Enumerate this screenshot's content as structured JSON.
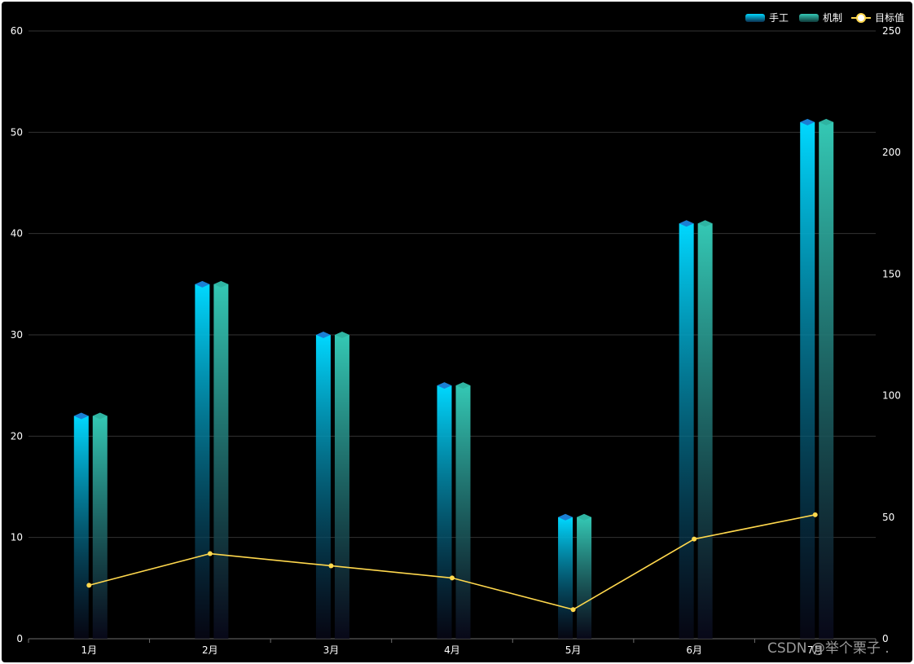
{
  "chart_data": {
    "type": "bar",
    "categories": [
      "1月",
      "2月",
      "3月",
      "4月",
      "5月",
      "6月",
      "7月"
    ],
    "series": [
      {
        "name": "手工",
        "type": "bar",
        "axis": "left",
        "values": [
          22,
          35,
          30,
          25,
          12,
          41,
          51
        ]
      },
      {
        "name": "机制",
        "type": "bar",
        "axis": "left",
        "values": [
          22,
          35,
          30,
          25,
          12,
          41,
          51
        ]
      },
      {
        "name": "目标值",
        "type": "line",
        "axis": "right",
        "values": [
          22,
          35,
          30,
          25,
          12,
          41,
          51
        ]
      }
    ],
    "y_left": {
      "min": 0,
      "max": 60,
      "ticks": [
        "0",
        "10",
        "20",
        "30",
        "40",
        "50",
        "60"
      ]
    },
    "y_right": {
      "min": 0,
      "max": 250,
      "ticks": [
        "0",
        "50",
        "100",
        "150",
        "200",
        "250"
      ]
    },
    "grid": true,
    "legend_position": "top-right",
    "colors": {
      "background": "#000000",
      "bar1_top": "#00d8ff",
      "bar1_cap": "#1a7fd4",
      "bar2_top": "#34c8b4",
      "bar2_cap": "#2fb4a2",
      "bar_bottom": "#0a0a1e",
      "line": "#ffd84d",
      "grid": "#333333"
    }
  },
  "watermark": "CSDN @举个栗子 ."
}
